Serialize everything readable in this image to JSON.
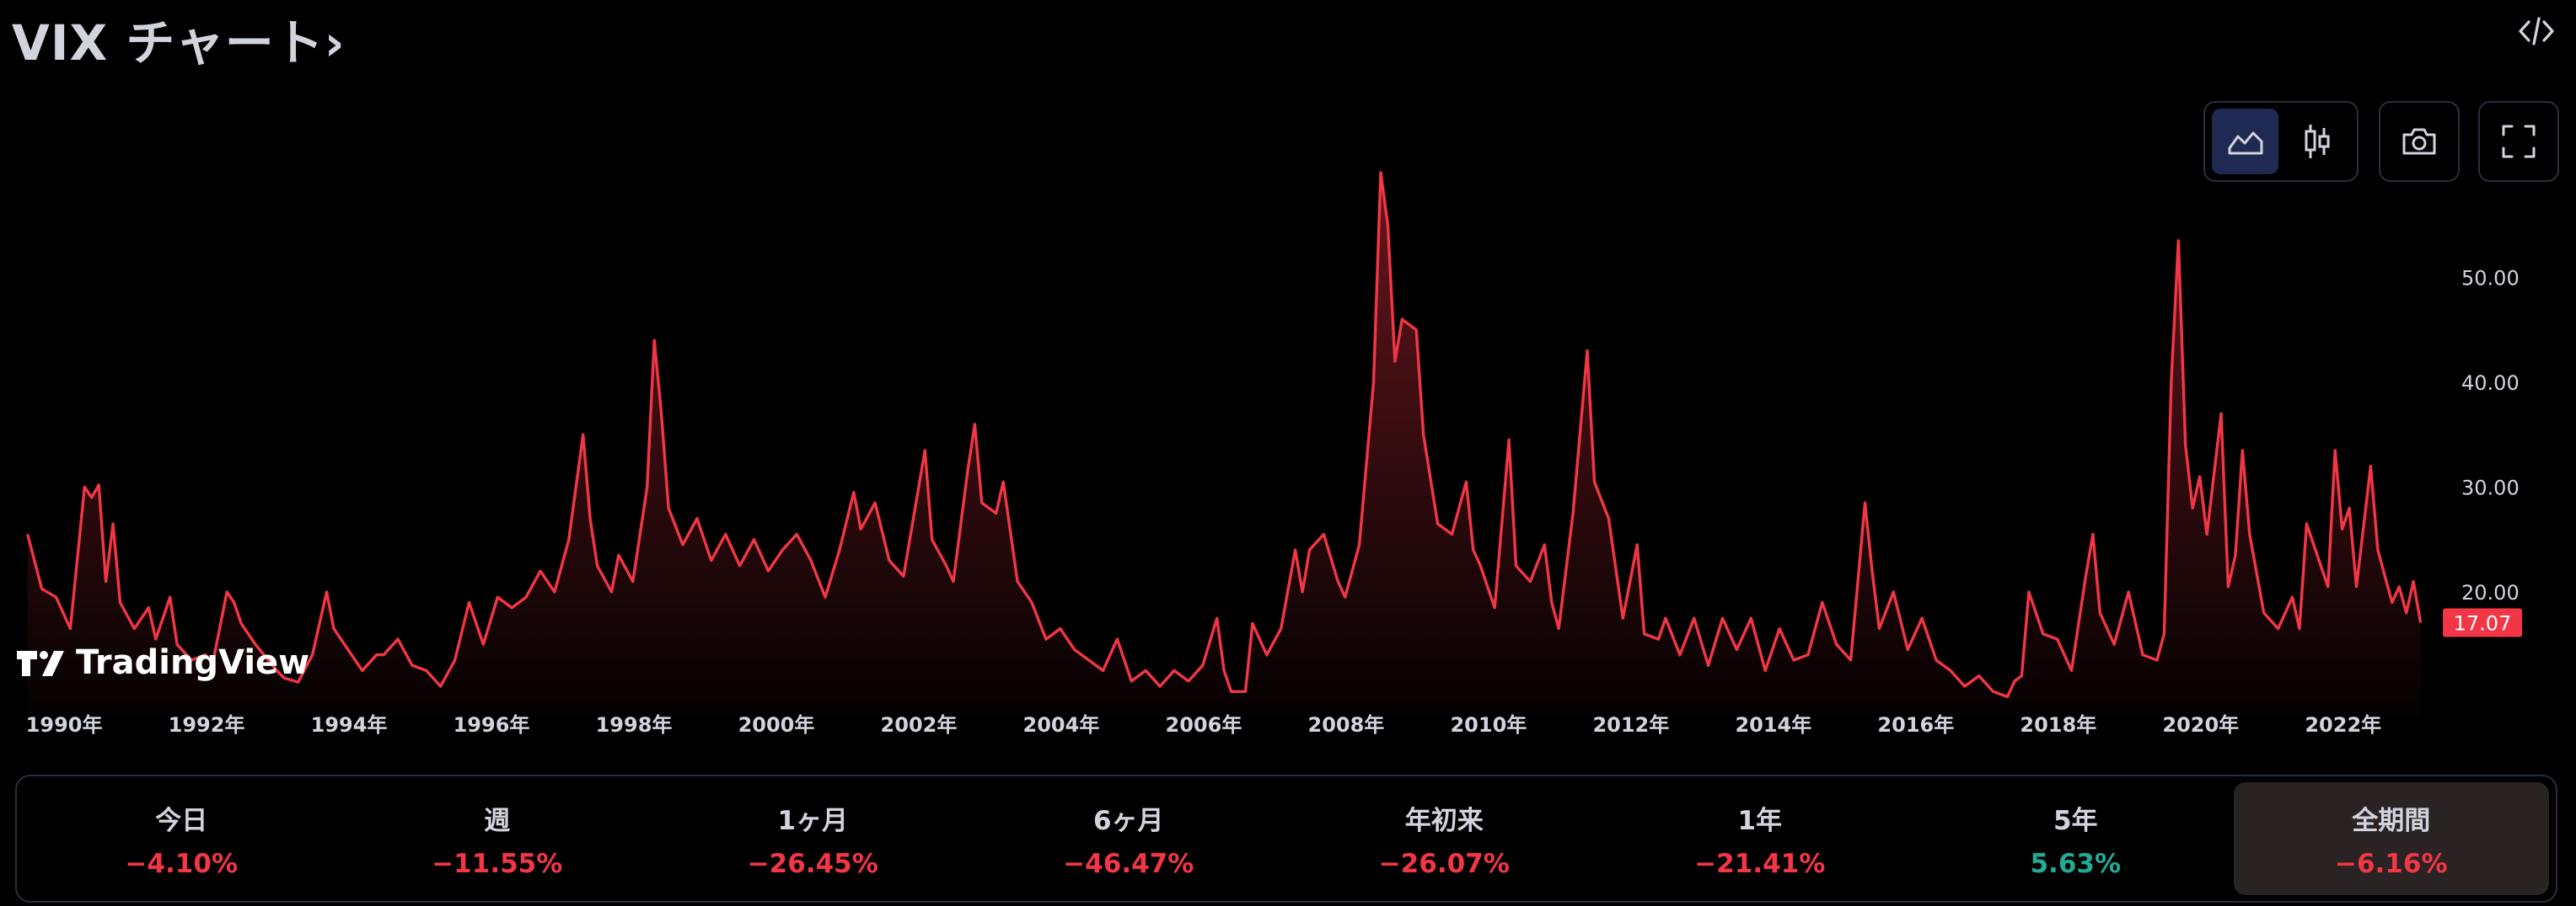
{
  "header": {
    "title": "VIX チャート›"
  },
  "icons": {
    "embed": "code-embed-icon",
    "area_chart": "area-chart-icon",
    "candles": "candlestick-icon",
    "camera": "camera-icon",
    "fullscreen": "fullscreen-icon"
  },
  "watermark": {
    "text": "TradingView"
  },
  "colors": {
    "line": "#f23645",
    "negative": "#f23645",
    "positive": "#22ab94",
    "active_button": "#1e2a52"
  },
  "periods": [
    {
      "label": "今日",
      "value": "−4.10%",
      "sign": "neg"
    },
    {
      "label": "週",
      "value": "−11.55%",
      "sign": "neg"
    },
    {
      "label": "1ヶ月",
      "value": "−26.45%",
      "sign": "neg"
    },
    {
      "label": "6ヶ月",
      "value": "−46.47%",
      "sign": "neg"
    },
    {
      "label": "年初来",
      "value": "−26.07%",
      "sign": "neg"
    },
    {
      "label": "1年",
      "value": "−21.41%",
      "sign": "neg"
    },
    {
      "label": "5年",
      "value": "5.63%",
      "sign": "pos"
    },
    {
      "label": "全期間",
      "value": "−6.16%",
      "sign": "neg",
      "active": true
    }
  ],
  "chart_data": {
    "type": "area",
    "title": "",
    "xlabel": "",
    "ylabel": "",
    "x_tick_labels": [
      "1990年",
      "1992年",
      "1994年",
      "1996年",
      "1998年",
      "2000年",
      "2002年",
      "2004年",
      "2006年",
      "2008年",
      "2010年",
      "2012年",
      "2014年",
      "2016年",
      "2018年",
      "2020年",
      "2022年"
    ],
    "y_tick_labels": [
      "20.00",
      "30.00",
      "40.00",
      "50.00"
    ],
    "y_ticks": [
      20,
      30,
      40,
      50
    ],
    "ylim": [
      9,
      62
    ],
    "xlim": [
      1989.85,
      2023.7
    ],
    "last_value_label": "17.07",
    "last_value": 17.07,
    "grid": false,
    "series": [
      {
        "values": [
          [
            1990.0,
            25.5
          ],
          [
            1990.2,
            20.3
          ],
          [
            1990.4,
            19.5
          ],
          [
            1990.6,
            16.5
          ],
          [
            1990.8,
            30.0
          ],
          [
            1990.9,
            29.0
          ],
          [
            1991.0,
            30.2
          ],
          [
            1991.1,
            21.0
          ],
          [
            1991.2,
            26.5
          ],
          [
            1991.3,
            19.0
          ],
          [
            1991.5,
            16.5
          ],
          [
            1991.7,
            18.5
          ],
          [
            1991.8,
            15.5
          ],
          [
            1992.0,
            19.5
          ],
          [
            1992.1,
            15.0
          ],
          [
            1992.3,
            13.5
          ],
          [
            1992.5,
            14.0
          ],
          [
            1992.6,
            13.2
          ],
          [
            1992.8,
            20.0
          ],
          [
            1992.9,
            19.0
          ],
          [
            1993.0,
            17.0
          ],
          [
            1993.2,
            15.0
          ],
          [
            1993.5,
            12.5
          ],
          [
            1993.6,
            11.8
          ],
          [
            1993.8,
            11.4
          ],
          [
            1994.0,
            14.0
          ],
          [
            1994.2,
            20.0
          ],
          [
            1994.3,
            16.5
          ],
          [
            1994.5,
            14.5
          ],
          [
            1994.7,
            12.5
          ],
          [
            1994.9,
            14.0
          ],
          [
            1995.0,
            14.0
          ],
          [
            1995.2,
            15.5
          ],
          [
            1995.4,
            13.0
          ],
          [
            1995.6,
            12.5
          ],
          [
            1995.8,
            11.0
          ],
          [
            1996.0,
            13.5
          ],
          [
            1996.2,
            19.0
          ],
          [
            1996.4,
            15.0
          ],
          [
            1996.6,
            19.5
          ],
          [
            1996.8,
            18.5
          ],
          [
            1997.0,
            19.5
          ],
          [
            1997.2,
            22.0
          ],
          [
            1997.4,
            20.0
          ],
          [
            1997.6,
            25.0
          ],
          [
            1997.8,
            35.0
          ],
          [
            1997.9,
            27.0
          ],
          [
            1998.0,
            22.5
          ],
          [
            1998.2,
            20.0
          ],
          [
            1998.3,
            23.5
          ],
          [
            1998.5,
            21.0
          ],
          [
            1998.7,
            30.0
          ],
          [
            1998.8,
            44.0
          ],
          [
            1998.9,
            37.0
          ],
          [
            1999.0,
            28.0
          ],
          [
            1999.2,
            24.5
          ],
          [
            1999.4,
            27.0
          ],
          [
            1999.6,
            23.0
          ],
          [
            1999.8,
            25.5
          ],
          [
            2000.0,
            22.5
          ],
          [
            2000.2,
            25.0
          ],
          [
            2000.4,
            22.0
          ],
          [
            2000.6,
            24.0
          ],
          [
            2000.8,
            25.5
          ],
          [
            2001.0,
            23.0
          ],
          [
            2001.2,
            19.5
          ],
          [
            2001.4,
            24.0
          ],
          [
            2001.6,
            29.5
          ],
          [
            2001.7,
            26.0
          ],
          [
            2001.9,
            28.5
          ],
          [
            2002.1,
            23.0
          ],
          [
            2002.3,
            21.5
          ],
          [
            2002.5,
            29.5
          ],
          [
            2002.6,
            33.5
          ],
          [
            2002.7,
            25.0
          ],
          [
            2002.9,
            22.5
          ],
          [
            2003.0,
            21.0
          ],
          [
            2003.2,
            31.5
          ],
          [
            2003.3,
            36.0
          ],
          [
            2003.4,
            28.5
          ],
          [
            2003.6,
            27.5
          ],
          [
            2003.7,
            30.5
          ],
          [
            2003.9,
            21.0
          ],
          [
            2004.1,
            19.0
          ],
          [
            2004.3,
            15.5
          ],
          [
            2004.5,
            16.5
          ],
          [
            2004.7,
            14.5
          ],
          [
            2004.9,
            13.5
          ],
          [
            2005.1,
            12.5
          ],
          [
            2005.3,
            15.5
          ],
          [
            2005.5,
            11.5
          ],
          [
            2005.7,
            12.5
          ],
          [
            2005.9,
            11.0
          ],
          [
            2006.1,
            12.5
          ],
          [
            2006.3,
            11.5
          ],
          [
            2006.5,
            13.0
          ],
          [
            2006.7,
            17.5
          ],
          [
            2006.8,
            12.5
          ],
          [
            2006.9,
            10.5
          ],
          [
            2007.1,
            10.5
          ],
          [
            2007.2,
            17.0
          ],
          [
            2007.4,
            14.0
          ],
          [
            2007.6,
            16.5
          ],
          [
            2007.8,
            24.0
          ],
          [
            2007.9,
            20.0
          ],
          [
            2008.0,
            24.0
          ],
          [
            2008.2,
            25.5
          ],
          [
            2008.4,
            21.0
          ],
          [
            2008.5,
            19.5
          ],
          [
            2008.7,
            24.5
          ],
          [
            2008.9,
            40.0
          ],
          [
            2009.0,
            60.0
          ],
          [
            2009.1,
            55.0
          ],
          [
            2009.2,
            42.0
          ],
          [
            2009.3,
            46.0
          ],
          [
            2009.5,
            45.0
          ],
          [
            2009.6,
            35.0
          ],
          [
            2009.8,
            26.5
          ],
          [
            2010.0,
            25.5
          ],
          [
            2010.2,
            30.5
          ],
          [
            2010.3,
            24.0
          ],
          [
            2010.4,
            22.5
          ],
          [
            2010.6,
            18.5
          ],
          [
            2010.8,
            34.5
          ],
          [
            2010.9,
            22.5
          ],
          [
            2011.1,
            21.0
          ],
          [
            2011.3,
            24.5
          ],
          [
            2011.4,
            19.0
          ],
          [
            2011.5,
            16.5
          ],
          [
            2011.7,
            27.5
          ],
          [
            2011.9,
            43.0
          ],
          [
            2012.0,
            30.5
          ],
          [
            2012.2,
            27.0
          ],
          [
            2012.4,
            17.5
          ],
          [
            2012.6,
            24.5
          ],
          [
            2012.7,
            16.0
          ],
          [
            2012.9,
            15.5
          ],
          [
            2013.0,
            17.5
          ],
          [
            2013.2,
            14.0
          ],
          [
            2013.4,
            17.5
          ],
          [
            2013.6,
            13.0
          ],
          [
            2013.8,
            17.5
          ],
          [
            2014.0,
            14.5
          ],
          [
            2014.2,
            17.5
          ],
          [
            2014.4,
            12.5
          ],
          [
            2014.6,
            16.5
          ],
          [
            2014.8,
            13.5
          ],
          [
            2015.0,
            14.0
          ],
          [
            2015.2,
            19.0
          ],
          [
            2015.4,
            15.0
          ],
          [
            2015.6,
            13.5
          ],
          [
            2015.8,
            28.5
          ],
          [
            2015.9,
            22.0
          ],
          [
            2016.0,
            16.5
          ],
          [
            2016.2,
            20.0
          ],
          [
            2016.4,
            14.5
          ],
          [
            2016.6,
            17.5
          ],
          [
            2016.8,
            13.5
          ],
          [
            2017.0,
            12.5
          ],
          [
            2017.2,
            11.0
          ],
          [
            2017.4,
            12.0
          ],
          [
            2017.6,
            10.5
          ],
          [
            2017.8,
            10.0
          ],
          [
            2017.9,
            11.5
          ],
          [
            2018.0,
            12.0
          ],
          [
            2018.1,
            20.0
          ],
          [
            2018.3,
            16.0
          ],
          [
            2018.5,
            15.5
          ],
          [
            2018.7,
            12.5
          ],
          [
            2018.9,
            21.5
          ],
          [
            2019.0,
            25.5
          ],
          [
            2019.1,
            18.0
          ],
          [
            2019.3,
            15.0
          ],
          [
            2019.5,
            20.0
          ],
          [
            2019.7,
            14.0
          ],
          [
            2019.9,
            13.5
          ],
          [
            2020.0,
            16.0
          ],
          [
            2020.1,
            40.0
          ],
          [
            2020.2,
            53.5
          ],
          [
            2020.3,
            34.0
          ],
          [
            2020.4,
            28.0
          ],
          [
            2020.5,
            31.0
          ],
          [
            2020.6,
            25.5
          ],
          [
            2020.8,
            37.0
          ],
          [
            2020.9,
            20.5
          ],
          [
            2021.0,
            23.5
          ],
          [
            2021.1,
            33.5
          ],
          [
            2021.2,
            25.5
          ],
          [
            2021.4,
            18.0
          ],
          [
            2021.6,
            16.5
          ],
          [
            2021.8,
            19.5
          ],
          [
            2021.9,
            16.5
          ],
          [
            2022.0,
            26.5
          ],
          [
            2022.2,
            22.5
          ],
          [
            2022.3,
            20.5
          ],
          [
            2022.4,
            33.5
          ],
          [
            2022.5,
            26.0
          ],
          [
            2022.6,
            28.0
          ],
          [
            2022.7,
            20.5
          ],
          [
            2022.9,
            32.0
          ],
          [
            2023.0,
            24.0
          ],
          [
            2023.2,
            19.0
          ],
          [
            2023.3,
            20.5
          ],
          [
            2023.4,
            18.0
          ],
          [
            2023.5,
            21.0
          ],
          [
            2023.6,
            17.07
          ]
        ]
      }
    ]
  }
}
